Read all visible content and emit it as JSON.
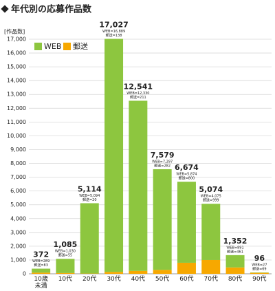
{
  "chart_data": {
    "type": "stacked-bar",
    "title": "年代別の応募作品数",
    "y_label": "[作品数]",
    "categories": [
      "10歳\n未満",
      "10代",
      "20代",
      "30代",
      "40代",
      "50代",
      "60代",
      "70代",
      "80代",
      "90代"
    ],
    "series": [
      {
        "name": "WEB",
        "color": "#8dc63f",
        "values": [
          289,
          1030,
          5094,
          16889,
          12330,
          7297,
          5874,
          4075,
          891,
          27
        ],
        "value_labels": [
          "WEB=289",
          "WEB=1,030",
          "WEB=5,094",
          "WEB=16,889",
          "WEB=12,330",
          "WEB=7,297",
          "WEB=5,874",
          "WEB=4,075",
          "WEB=891",
          "WEB=27"
        ]
      },
      {
        "name": "郵送",
        "color": "#f7a800",
        "values": [
          83,
          55,
          20,
          138,
          211,
          282,
          800,
          999,
          461,
          69
        ],
        "value_labels": [
          "郵送=83",
          "郵送=55",
          "郵送=20",
          "郵送=138",
          "郵送=211",
          "郵送=282",
          "郵送=800",
          "郵送=999",
          "郵送=461",
          "郵送=69"
        ]
      }
    ],
    "totals": [
      372,
      1085,
      5114,
      17027,
      12541,
      7579,
      6674,
      5074,
      1352,
      96
    ],
    "total_labels": [
      "372",
      "1,085",
      "5,114",
      "17,027",
      "12,541",
      "7,579",
      "6,674",
      "5,074",
      "1,352",
      "96"
    ],
    "ylim": [
      0,
      17000
    ],
    "yticks": [
      0,
      {
        "value": 1000,
        "label": "1,000"
      },
      {
        "value": 2000,
        "label": "2,000"
      },
      {
        "value": 3000,
        "label": "3,000"
      },
      {
        "value": 4000,
        "label": "4,000"
      },
      {
        "value": 5000,
        "label": "5,000"
      },
      {
        "value": 6000,
        "label": "6,000"
      },
      {
        "value": 7000,
        "label": "7,000"
      },
      {
        "value": 8000,
        "label": "8,000"
      },
      {
        "value": 9000,
        "label": "9,000"
      },
      {
        "value": 10000,
        "label": "10,000"
      },
      {
        "value": 11000,
        "label": "11,000"
      },
      {
        "value": 12000,
        "label": "12,000"
      },
      {
        "value": 13000,
        "label": "13,000"
      },
      {
        "value": 14000,
        "label": "14,000"
      },
      {
        "value": 15000,
        "label": "15,000"
      },
      {
        "value": 16000,
        "label": "16,000"
      },
      {
        "value": 17000,
        "label": "17,000"
      }
    ],
    "grid": true,
    "legend": "top-left"
  }
}
